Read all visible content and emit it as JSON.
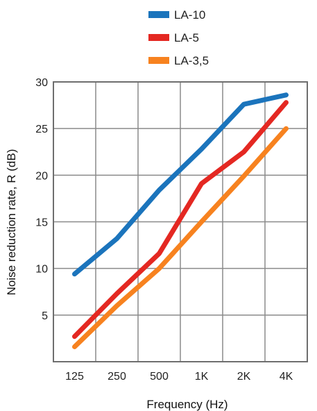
{
  "chart_data": {
    "type": "line",
    "title": "",
    "xlabel": "Frequency (Hz)",
    "ylabel": "Noise reduction rate, R (dB)",
    "categories": [
      "125",
      "250",
      "500",
      "1K",
      "2K",
      "4K"
    ],
    "ylim": [
      0,
      30
    ],
    "yticks": [
      5,
      10,
      15,
      20,
      25,
      30
    ],
    "grid": true,
    "legend_position": "top",
    "series": [
      {
        "name": "LA-10",
        "color": "#1b74bc",
        "values": [
          9.4,
          13.2,
          18.4,
          22.8,
          27.6,
          28.6
        ]
      },
      {
        "name": "LA-5",
        "color": "#e42822",
        "values": [
          2.7,
          7.3,
          11.6,
          19.1,
          22.5,
          27.8
        ]
      },
      {
        "name": "LA-3,5",
        "color": "#f7821f",
        "values": [
          1.6,
          6.0,
          10.0,
          15.0,
          19.9,
          25.0
        ]
      }
    ]
  }
}
